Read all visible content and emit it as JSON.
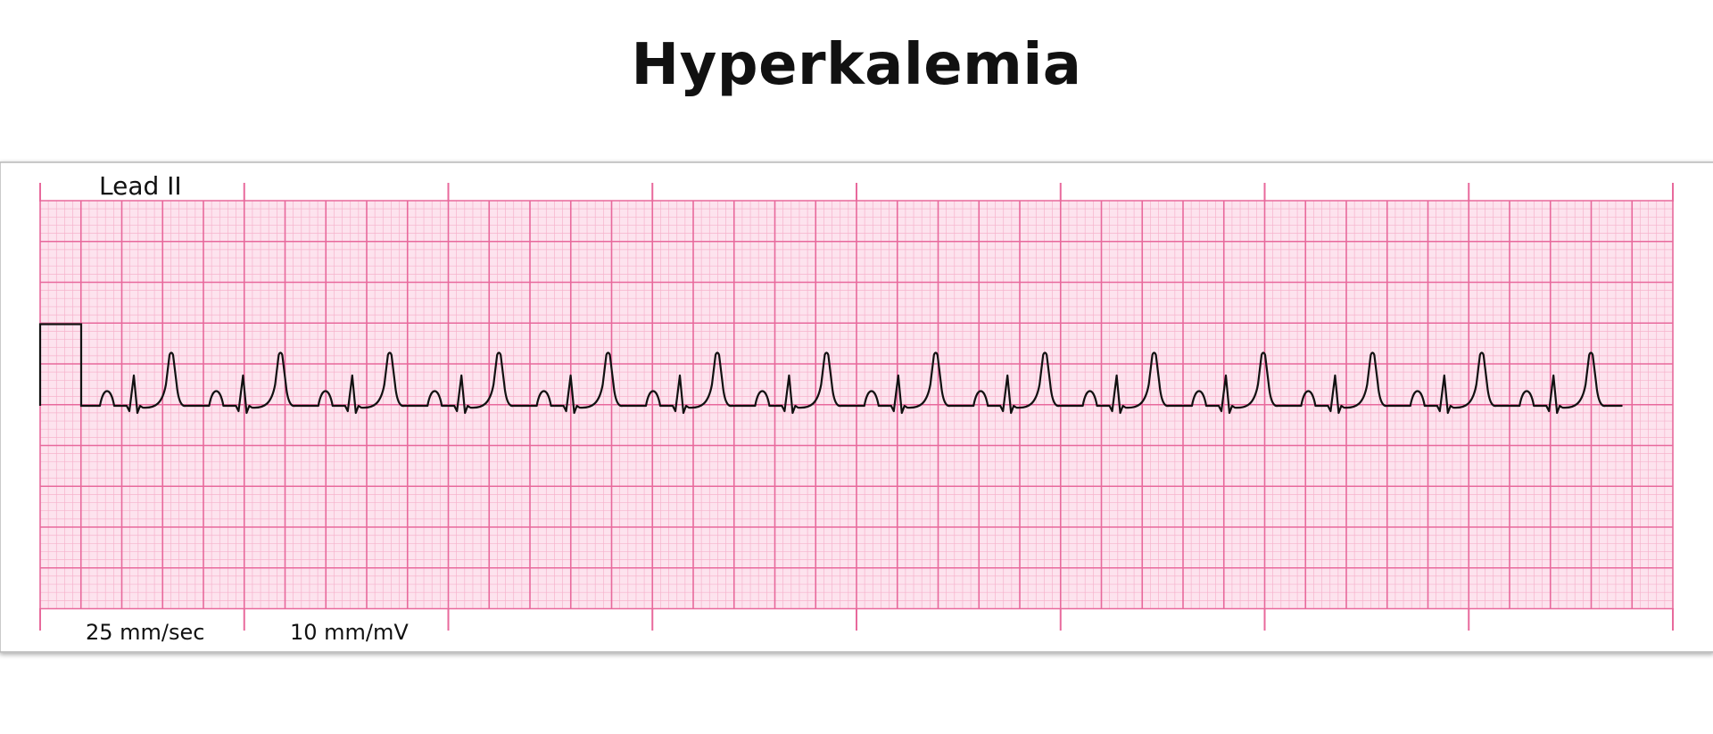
{
  "title": "Hyperkalemia",
  "lead_label": "Lead II",
  "paper_speed_label": "25 mm/sec",
  "gain_label": "10 mm/mV",
  "colors": {
    "paper_background": "#fde3ee",
    "minor_grid": "#f6b3cc",
    "major_grid": "#e8699c",
    "trace": "#111111",
    "frame_shadow": "#9a9a9a"
  },
  "rhythm": {
    "beat_count": 14,
    "features": [
      "peaked-t-waves",
      "small-p-waves",
      "narrow-qrs"
    ]
  }
}
